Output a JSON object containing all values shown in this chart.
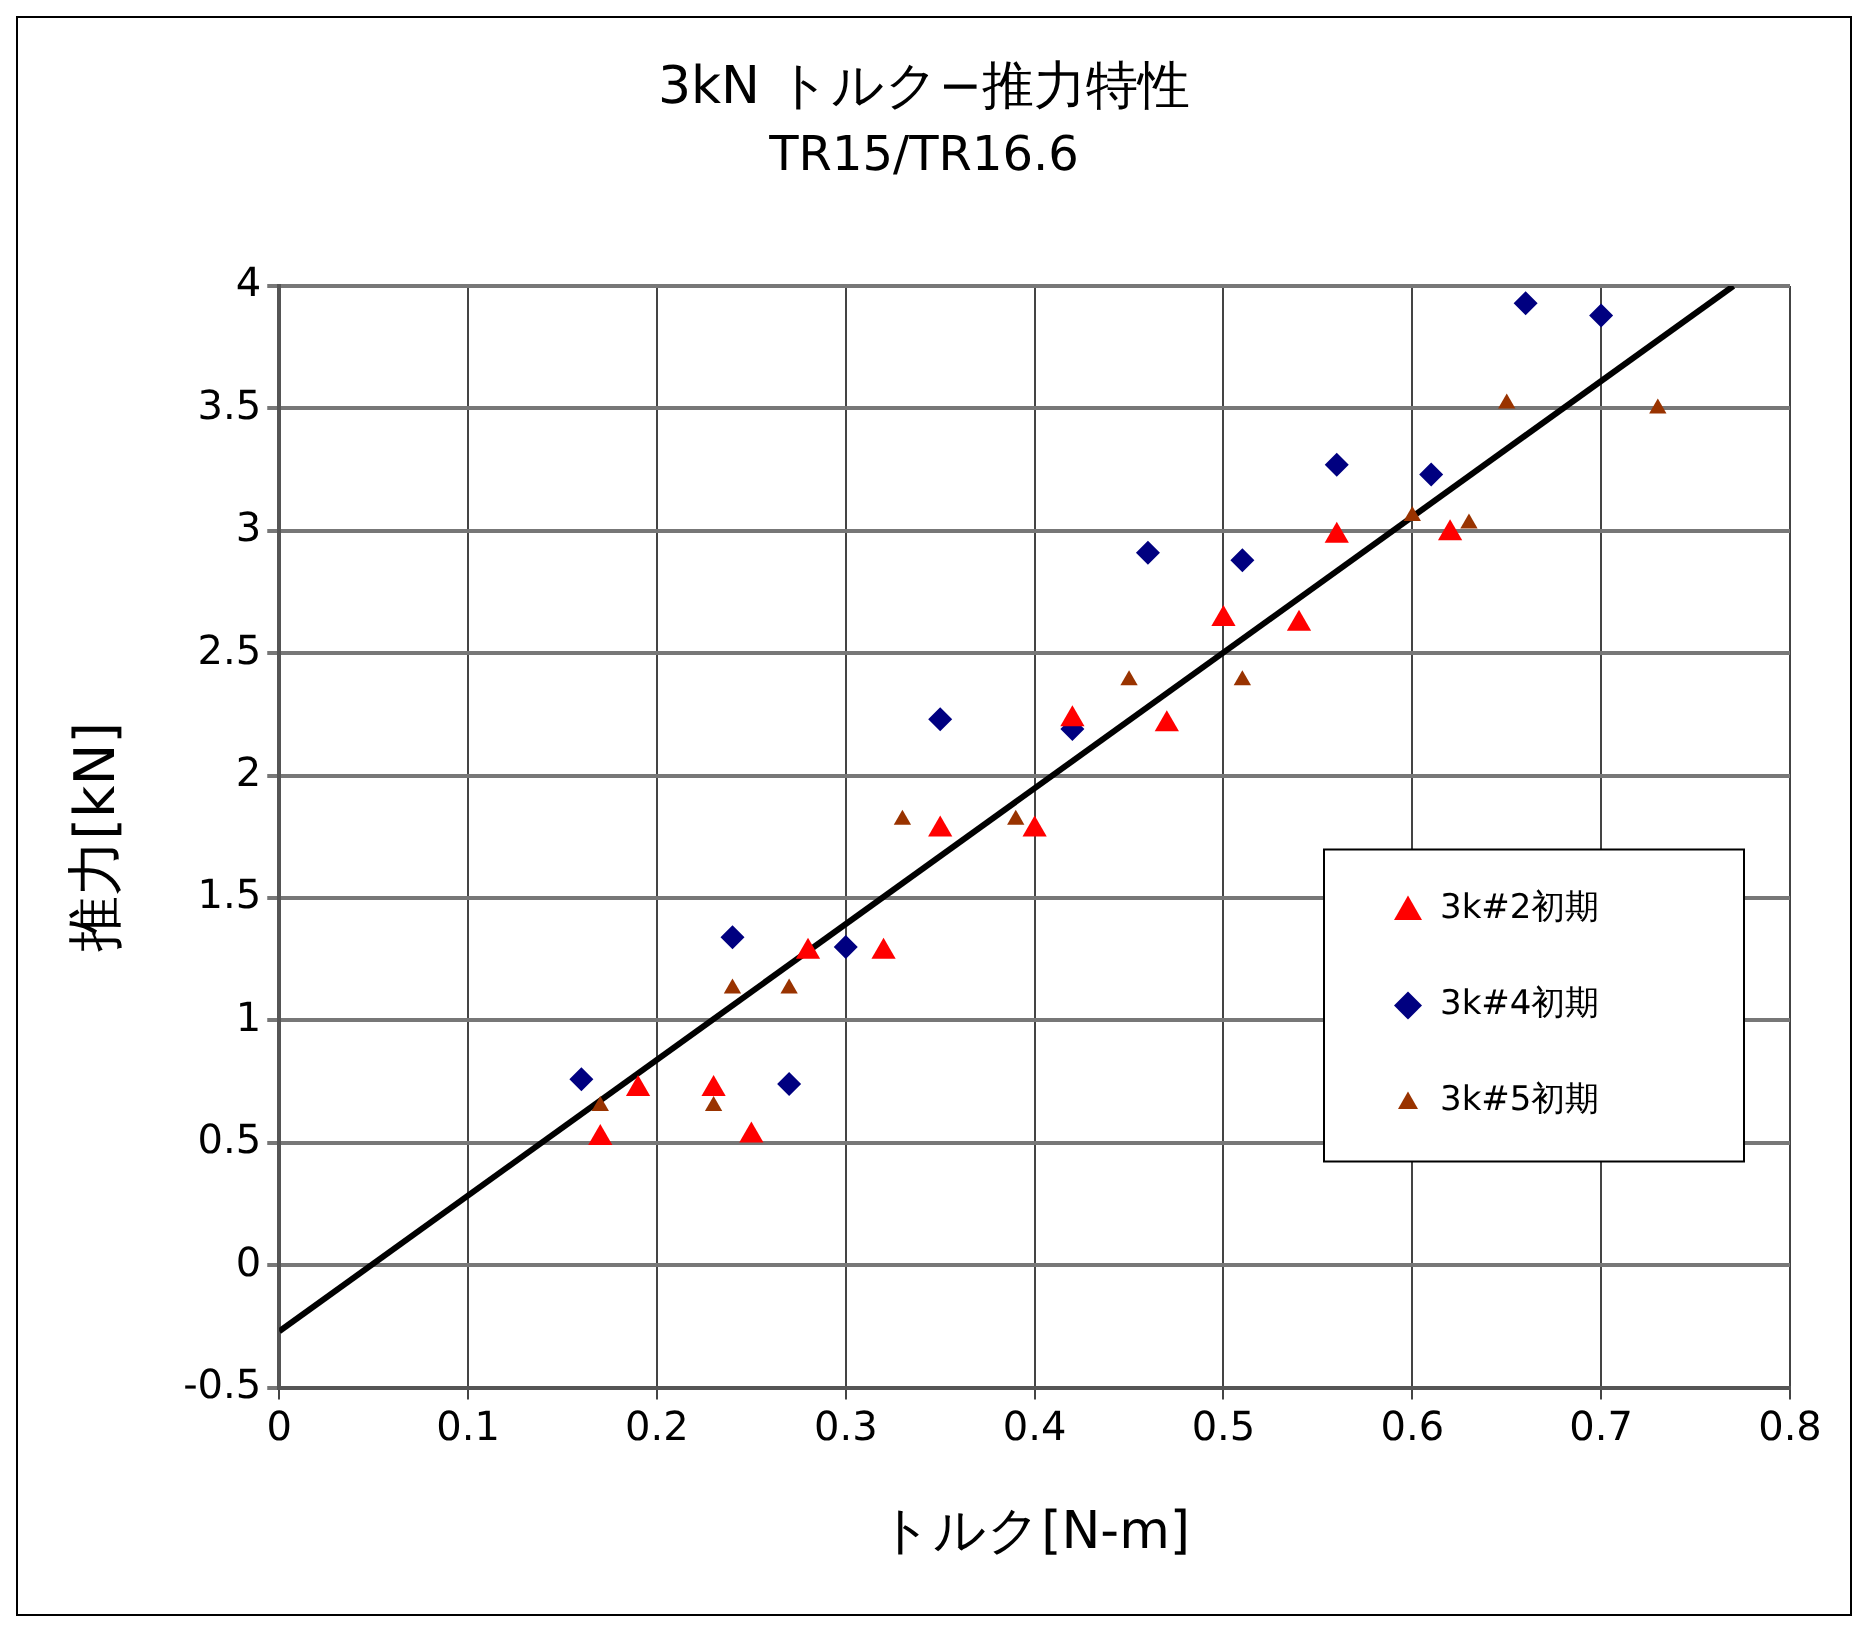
{
  "chart_data": {
    "type": "scatter",
    "title": "3kN トルク−推力特性",
    "subtitle": "TR15/TR16.6",
    "xlabel": "トルク[N-m]",
    "ylabel": "推力[kN]",
    "xlim": [
      0,
      0.8
    ],
    "xticks": [
      0,
      0.1,
      0.2,
      0.3,
      0.4,
      0.5,
      0.6,
      0.7,
      0.8
    ],
    "ylim": [
      -0.5,
      4
    ],
    "yticks": [
      -0.5,
      0,
      0.5,
      1,
      1.5,
      2,
      2.5,
      3,
      3.5,
      4
    ],
    "grid": true,
    "legend": "bottom right",
    "series": [
      {
        "name": "3k#2初期",
        "color": "#ff0000",
        "marker": "triangle",
        "x": [
          0.17,
          0.19,
          0.23,
          0.25,
          0.28,
          0.32,
          0.35,
          0.4,
          0.42,
          0.47,
          0.5,
          0.54,
          0.56,
          0.62
        ],
        "values": [
          0.52,
          0.72,
          0.72,
          0.53,
          1.28,
          1.28,
          1.78,
          1.78,
          2.23,
          2.21,
          2.64,
          2.62,
          2.98,
          2.99
        ]
      },
      {
        "name": "3k#4初期",
        "color": "#000080",
        "marker": "diamond",
        "x": [
          0.16,
          0.24,
          0.27,
          0.3,
          0.35,
          0.42,
          0.46,
          0.51,
          0.56,
          0.61,
          0.66,
          0.7
        ],
        "values": [
          0.76,
          1.34,
          0.74,
          1.3,
          2.23,
          2.19,
          2.91,
          2.88,
          3.27,
          3.23,
          3.93,
          3.88
        ]
      },
      {
        "name": "3k#5初期",
        "color": "#993300",
        "marker": "triangle",
        "x": [
          0.17,
          0.23,
          0.24,
          0.27,
          0.33,
          0.39,
          0.45,
          0.51,
          0.6,
          0.63,
          0.65,
          0.73
        ],
        "values": [
          0.65,
          0.65,
          1.13,
          1.13,
          1.82,
          1.82,
          2.39,
          2.39,
          3.06,
          3.03,
          3.52,
          3.5
        ]
      },
      {
        "type": "line",
        "color": "#000000",
        "marker": "none",
        "x": [
          0,
          0.77
        ],
        "values": [
          -0.27,
          4
        ]
      }
    ]
  }
}
